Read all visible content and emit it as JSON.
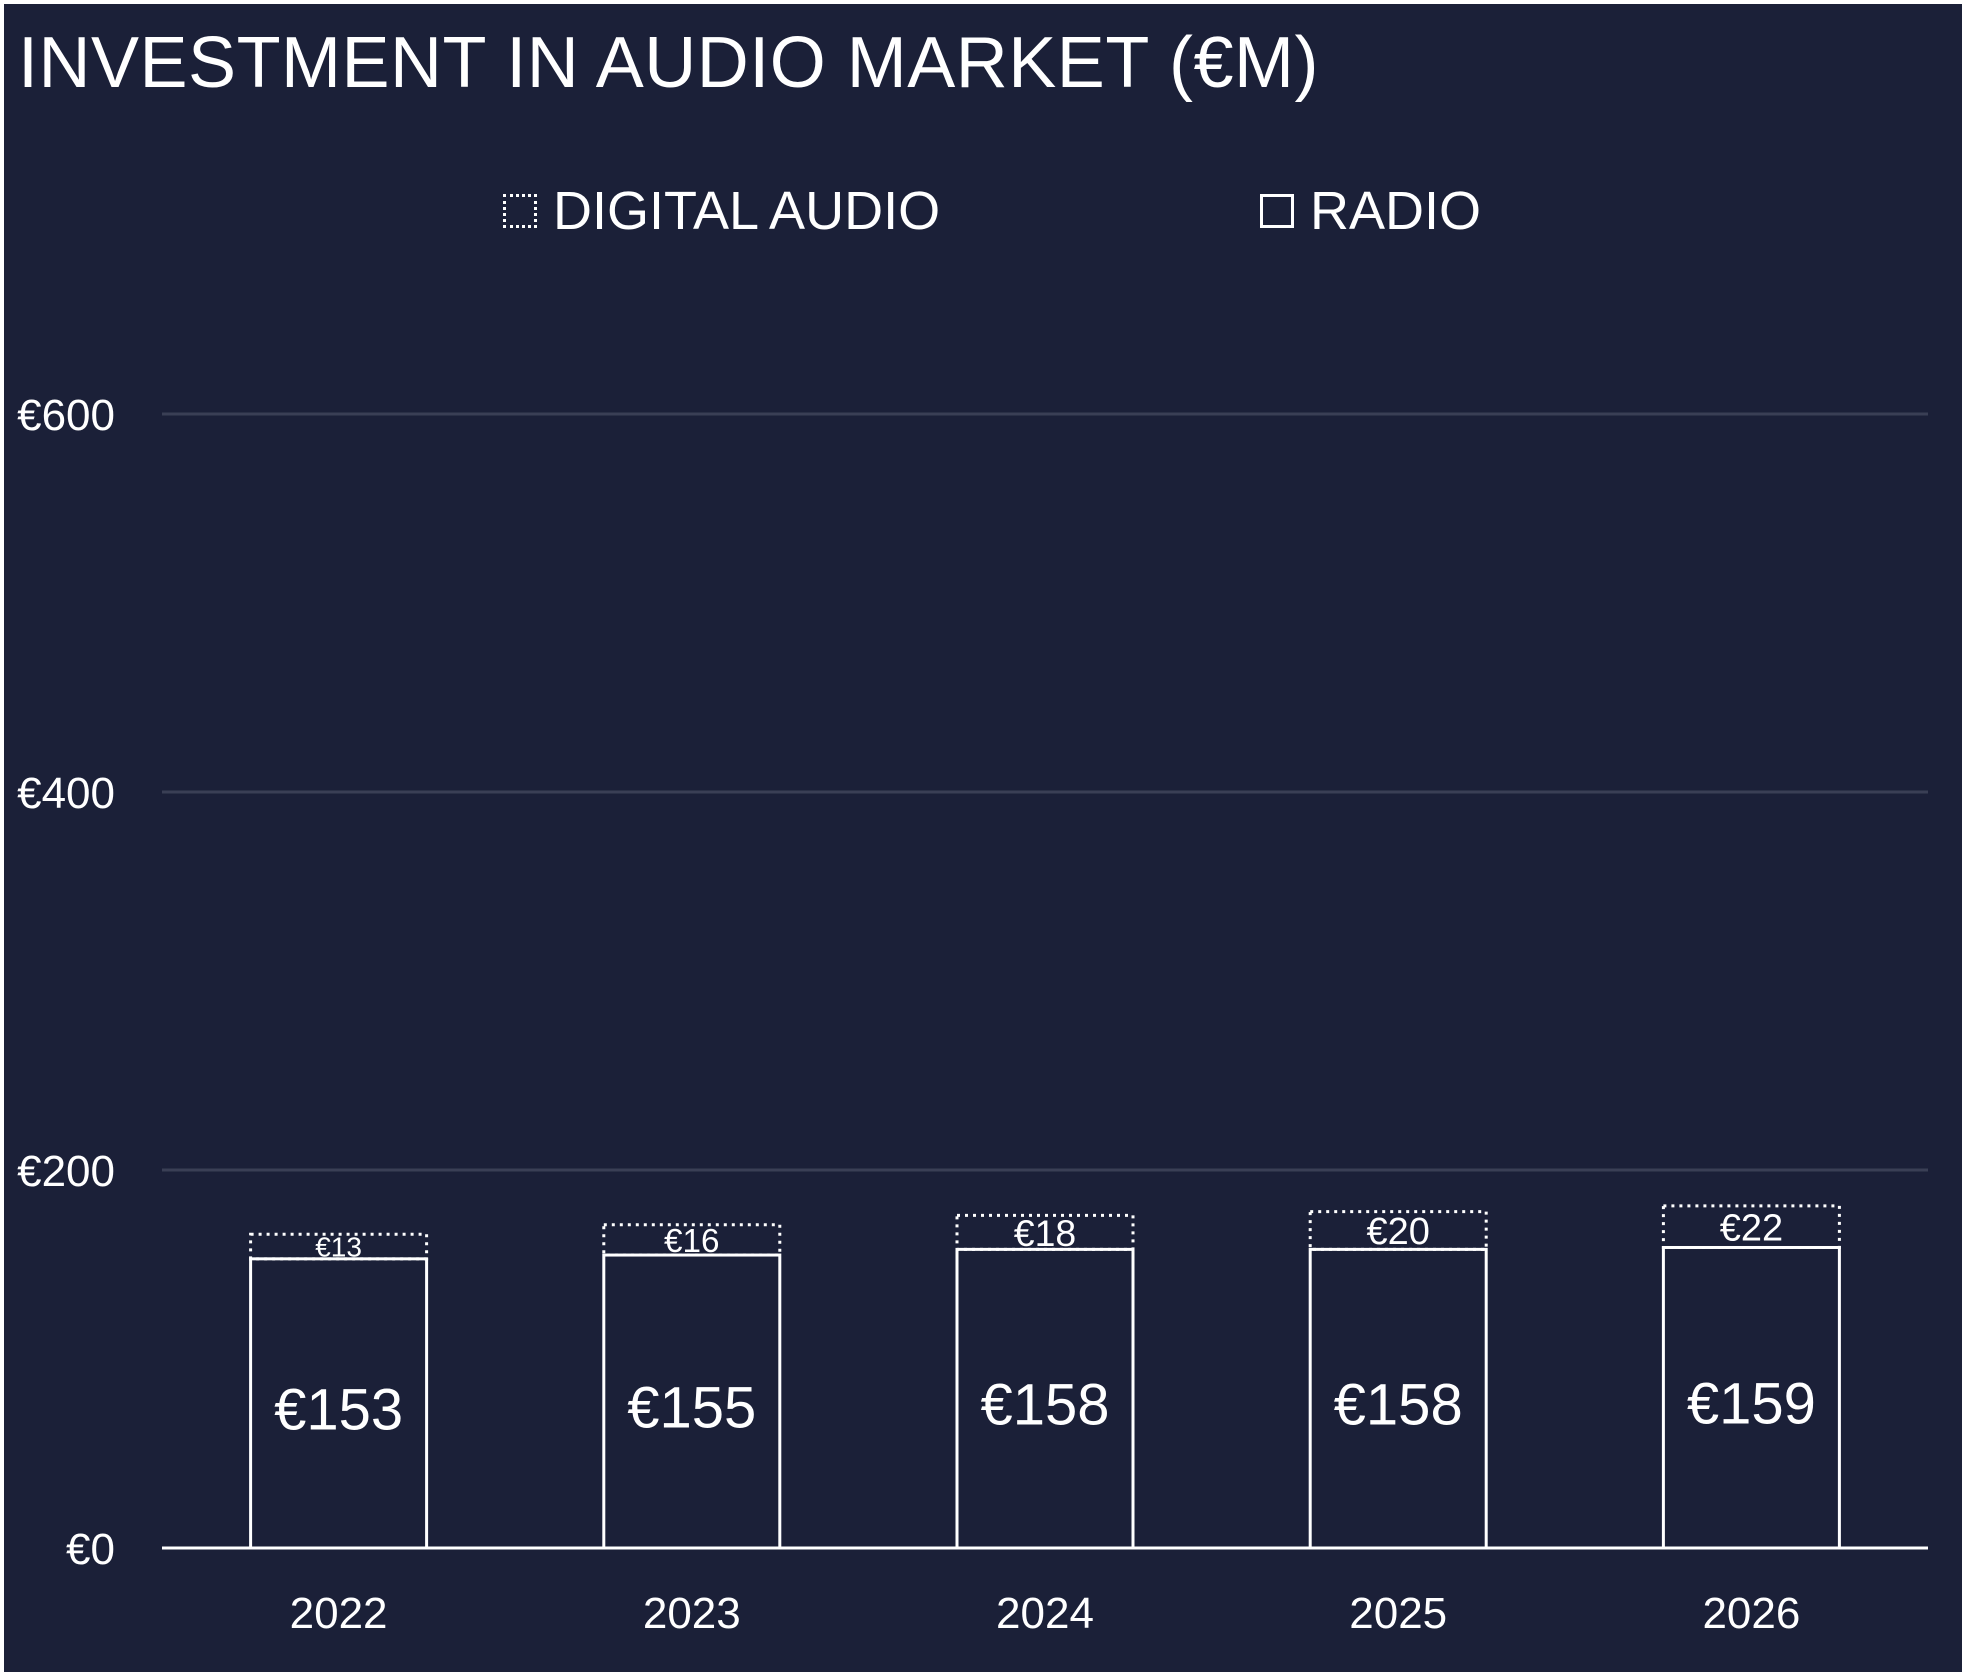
{
  "title": "INVESTMENT IN AUDIO MARKET (€M)",
  "legend": [
    {
      "label": "DIGITAL AUDIO",
      "style": "dotted"
    },
    {
      "label": "RADIO",
      "style": "solid"
    }
  ],
  "colors": {
    "background": "#1b2038",
    "foreground": "#ffffff",
    "grid": "#3a3f55"
  },
  "chart_data": {
    "type": "bar",
    "stacked": true,
    "title": "INVESTMENT IN AUDIO MARKET (€M)",
    "categories": [
      "2022",
      "2023",
      "2024",
      "2025",
      "2026"
    ],
    "series": [
      {
        "name": "RADIO",
        "values": [
          153,
          155,
          158,
          158,
          159
        ],
        "labels": [
          "€153",
          "€155",
          "€158",
          "€158",
          "€159"
        ]
      },
      {
        "name": "DIGITAL AUDIO",
        "values": [
          13,
          16,
          18,
          20,
          22
        ],
        "labels": [
          "€13",
          "€16",
          "€18",
          "€20",
          "€22"
        ]
      }
    ],
    "ylim": [
      0,
      600
    ],
    "yticks": [
      0,
      200,
      400,
      600
    ],
    "ytick_labels": [
      "€0",
      "€200",
      "€400",
      "€600"
    ],
    "grid": true,
    "legend_position": "top"
  }
}
